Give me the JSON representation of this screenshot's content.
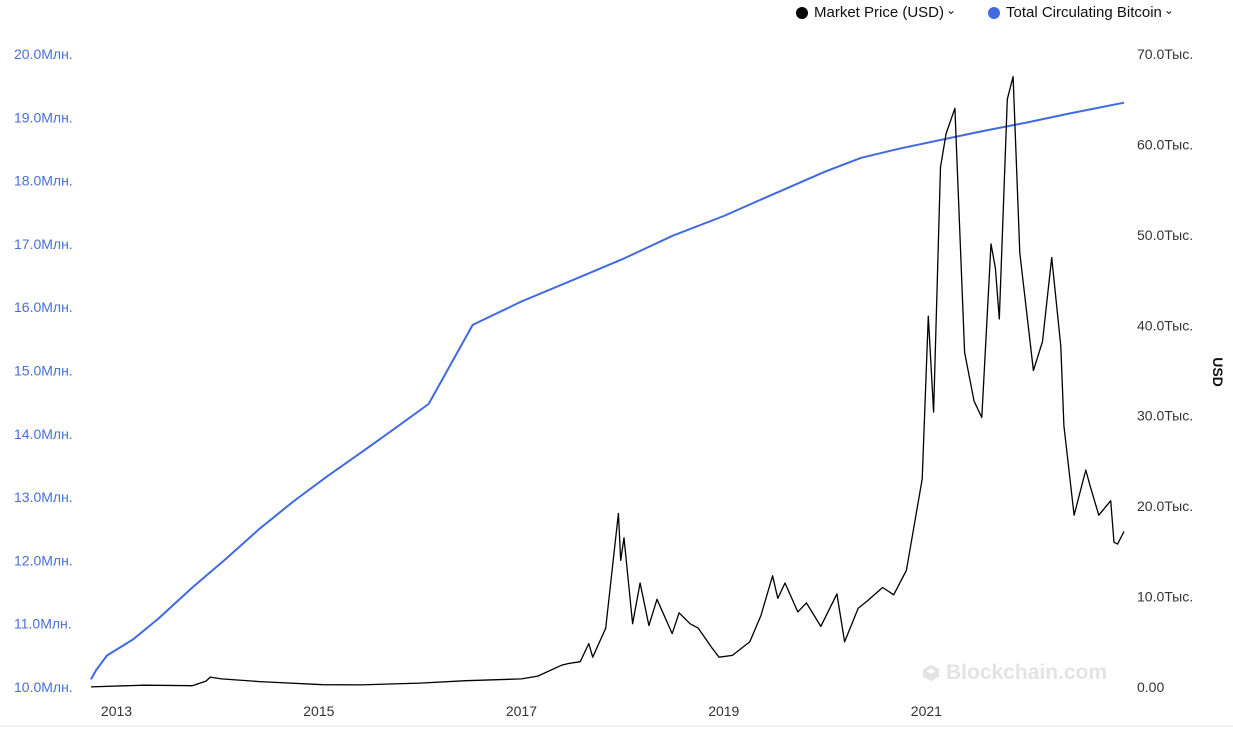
{
  "legend": {
    "price_label": "Market Price (USD)",
    "supply_label": "Total Circulating Bitcoin"
  },
  "watermark": "Blockchain.com",
  "colors": {
    "price": "#000000",
    "supply": "#4169e1",
    "left_axis_text": "#4a6fd6",
    "right_axis_text": "#333333"
  },
  "icons": {
    "legend_chevron": "chevron-down-icon",
    "watermark_logo": "blockchain-logo-icon"
  },
  "chart_data": {
    "type": "line",
    "x_axis": {
      "type": "date",
      "range": [
        "2012-10-01",
        "2022-12-15"
      ],
      "tick_labels": [
        "2013",
        "2015",
        "2017",
        "2019",
        "2021"
      ]
    },
    "y_left": {
      "range": [
        10000000,
        20000000
      ],
      "tick_labels": [
        "10.0Млн.",
        "11.0Млн.",
        "12.0Млн.",
        "13.0Млн.",
        "14.0Млн.",
        "15.0Млн.",
        "16.0Млн.",
        "17.0Млн.",
        "18.0Млн.",
        "19.0Млн.",
        "20.0Млн."
      ]
    },
    "y_right": {
      "label": "USD",
      "range": [
        0,
        70000
      ],
      "tick_labels": [
        "0.00",
        "10.0Тыс.",
        "20.0Тыс.",
        "30.0Тыс.",
        "40.0Тыс.",
        "50.0Тыс.",
        "60.0Тыс.",
        "70.0Тыс."
      ]
    },
    "grid": false,
    "legend_position": "top-right",
    "series": [
      {
        "name": "Total Circulating Bitcoin",
        "axis": "left",
        "x": [
          "2012-10-01",
          "2012-10-20",
          "2012-11-28",
          "2013-03-01",
          "2013-06-01",
          "2013-10-01",
          "2014-02-01",
          "2014-06-01",
          "2014-10-01",
          "2015-02-01",
          "2015-06-01",
          "2015-10-01",
          "2016-02-01",
          "2016-07-09",
          "2017-01-01",
          "2017-07-01",
          "2018-01-01",
          "2018-07-01",
          "2019-01-01",
          "2019-07-01",
          "2020-01-01",
          "2020-05-11",
          "2020-10-01",
          "2021-03-01",
          "2021-08-01",
          "2022-01-01",
          "2022-06-01",
          "2022-12-15"
        ],
        "values": [
          10120000,
          10270000,
          10500000,
          10750000,
          11080000,
          11570000,
          12030000,
          12500000,
          12930000,
          13330000,
          13700000,
          14080000,
          14470000,
          15720000,
          16090000,
          16420000,
          16760000,
          17130000,
          17440000,
          17790000,
          18140000,
          18360000,
          18510000,
          18650000,
          18790000,
          18920000,
          19060000,
          19230000
        ]
      },
      {
        "name": "Market Price (USD)",
        "axis": "right",
        "x": [
          "2012-10-01",
          "2013-04-10",
          "2013-10-01",
          "2013-11-20",
          "2013-12-05",
          "2014-01-15",
          "2014-06-01",
          "2015-01-15",
          "2015-06-01",
          "2016-01-01",
          "2016-06-15",
          "2017-01-01",
          "2017-03-01",
          "2017-05-25",
          "2017-06-20",
          "2017-08-01",
          "2017-09-01",
          "2017-09-15",
          "2017-11-01",
          "2017-12-17",
          "2017-12-25",
          "2018-01-06",
          "2018-02-06",
          "2018-03-05",
          "2018-04-06",
          "2018-05-05",
          "2018-06-29",
          "2018-07-24",
          "2018-09-01",
          "2018-10-01",
          "2018-11-20",
          "2018-12-15",
          "2019-02-01",
          "2019-04-05",
          "2019-05-15",
          "2019-06-26",
          "2019-07-15",
          "2019-08-10",
          "2019-09-25",
          "2019-10-26",
          "2019-12-17",
          "2020-02-13",
          "2020-03-12",
          "2020-04-30",
          "2020-06-01",
          "2020-07-27",
          "2020-09-05",
          "2020-10-21",
          "2020-12-17",
          "2021-01-08",
          "2021-01-27",
          "2021-02-21",
          "2021-03-13",
          "2021-04-14",
          "2021-05-19",
          "2021-06-22",
          "2021-07-20",
          "2021-08-22",
          "2021-09-07",
          "2021-09-21",
          "2021-10-20",
          "2021-11-10",
          "2021-12-04",
          "2022-01-22",
          "2022-02-24",
          "2022-03-29",
          "2022-05-01",
          "2022-05-12",
          "2022-06-18",
          "2022-07-30",
          "2022-08-15",
          "2022-09-15",
          "2022-10-28",
          "2022-11-09",
          "2022-11-22",
          "2022-12-15"
        ],
        "values": [
          12,
          200,
          140,
          650,
          1100,
          900,
          600,
          250,
          230,
          430,
          700,
          900,
          1200,
          2400,
          2600,
          2800,
          4800,
          3300,
          6500,
          19200,
          14000,
          16500,
          7000,
          11500,
          6800,
          9700,
          5900,
          8200,
          7000,
          6500,
          4300,
          3300,
          3500,
          5000,
          7900,
          12300,
          9800,
          11500,
          8300,
          9300,
          6700,
          10300,
          5000,
          8700,
          9500,
          11000,
          10200,
          12900,
          23000,
          41000,
          30400,
          57500,
          61200,
          64000,
          37000,
          31600,
          29800,
          49000,
          46300,
          40700,
          65000,
          67500,
          48000,
          35000,
          38200,
          47500,
          37700,
          28900,
          19000,
          24000,
          22200,
          19000,
          20600,
          16000,
          15800,
          17200
        ]
      }
    ]
  }
}
